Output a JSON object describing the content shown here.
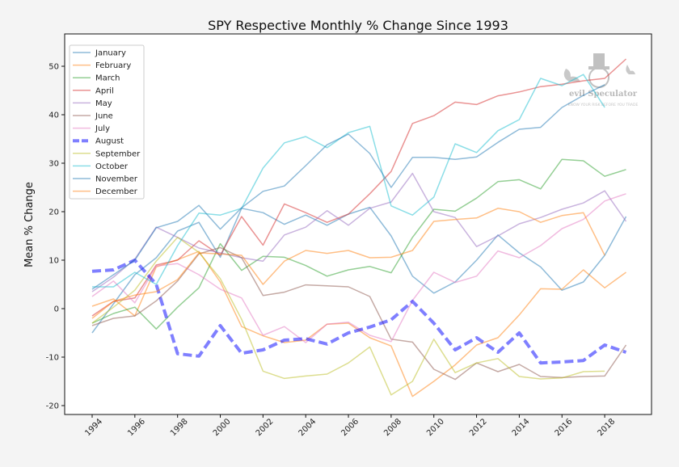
{
  "chart_data": {
    "type": "line",
    "title": "SPY Respective Monthly % Change Since 1993",
    "xlabel": "",
    "ylabel": "Mean % Change",
    "xlim": [
      1993,
      2020
    ],
    "ylim": [
      -22,
      55
    ],
    "xticks": [
      1994,
      1996,
      1998,
      2000,
      2002,
      2004,
      2006,
      2008,
      2010,
      2012,
      2014,
      2016,
      2018
    ],
    "yticks": [
      -20,
      -10,
      0,
      10,
      20,
      30,
      40,
      50
    ],
    "legend": "top-left",
    "grid": false,
    "x": [
      1994,
      1995,
      1996,
      1997,
      1998,
      1999,
      2000,
      2001,
      2002,
      2003,
      2004,
      2005,
      2006,
      2007,
      2008,
      2009,
      2010,
      2011,
      2012,
      2013,
      2014,
      2015,
      2016,
      2017,
      2018,
      2019
    ],
    "series": [
      {
        "name": "January",
        "color": "#1f77b4",
        "dashed": false,
        "values": [
          -5,
          1,
          7,
          10.5,
          16,
          17.8,
          10.6,
          20.7,
          19.8,
          17.4,
          19.3,
          17.2,
          19.5,
          20.9,
          15,
          6.7,
          3.2,
          5.5,
          10,
          15.2,
          11.5,
          8.6,
          3.8,
          5.5,
          11,
          19
        ]
      },
      {
        "name": "February",
        "color": "#ff7f0e",
        "dashed": false,
        "values": [
          0.5,
          2,
          -1.5,
          8.6,
          10.1,
          11.8,
          5.5,
          -3.7,
          -5.6,
          -7,
          -6.5,
          -3.2,
          -3,
          -6,
          -7.7,
          -18.1,
          -15,
          -11.6,
          -7.5,
          -6,
          -1.3,
          4.1,
          4,
          8,
          4.3,
          7.5
        ]
      },
      {
        "name": "March",
        "color": "#2ca02c",
        "dashed": false,
        "values": [
          -3,
          -1,
          0.3,
          -4.2,
          0.3,
          4.3,
          13.4,
          7.9,
          10.8,
          10.6,
          8.9,
          6.7,
          8,
          8.7,
          7.4,
          14.7,
          20.5,
          20.1,
          22.8,
          26.2,
          26.6,
          24.7,
          30.8,
          30.5,
          27.3,
          28.7
        ]
      },
      {
        "name": "April",
        "color": "#d62728",
        "dashed": false,
        "values": [
          -1.5,
          1.5,
          2.2,
          9,
          10,
          14,
          11,
          19,
          13.1,
          21.6,
          19.8,
          17.8,
          19.5,
          23.7,
          28.3,
          38.2,
          39.8,
          42.6,
          42.1,
          43.9,
          44.7,
          45.8,
          46.3,
          47,
          47.5,
          51.5
        ]
      },
      {
        "name": "May",
        "color": "#9467bd",
        "dashed": false,
        "values": [
          3.5,
          6.5,
          10.2,
          16.8,
          14.7,
          12.5,
          11.5,
          10.5,
          9.8,
          15.2,
          16.8,
          20.2,
          17.2,
          20.7,
          22,
          27.9,
          20,
          18.8,
          12.8,
          15,
          17.5,
          18.8,
          20.5,
          21.8,
          24.3,
          18
        ]
      },
      {
        "name": "June",
        "color": "#8c564b",
        "dashed": false,
        "values": [
          -3.5,
          -2,
          -1.5,
          1.6,
          5.7,
          11.3,
          12.6,
          10.5,
          2.7,
          3.4,
          4.9,
          4.7,
          4.5,
          2.5,
          -6.3,
          -6.9,
          -12.5,
          -14.6,
          -11.2,
          -13,
          -11.5,
          -14,
          -14.2,
          -14,
          -13.9,
          -7.5
        ]
      },
      {
        "name": "July",
        "color": "#e377c2",
        "dashed": false,
        "values": [
          2.5,
          5.7,
          1.2,
          8.8,
          9.3,
          7,
          4,
          2.2,
          -5.5,
          -3.7,
          -7,
          -3.2,
          -2.8,
          -5.5,
          -6.8,
          1.7,
          7.5,
          5.4,
          6.7,
          11.9,
          10.5,
          13,
          16.5,
          18.4,
          22.2,
          23.7
        ]
      },
      {
        "name": "August",
        "color": "#0000ff",
        "dashed": true,
        "values": [
          7.7,
          8,
          10,
          5,
          -9.3,
          -9.8,
          -3.5,
          -9.2,
          -8.5,
          -6.5,
          -6.2,
          -7.3,
          -5,
          -3.8,
          -2.3,
          1.5,
          -3,
          -8.5,
          -6,
          -9,
          -5,
          -11.2,
          -11,
          -10.7,
          -7.5,
          -9
        ]
      },
      {
        "name": "September",
        "color": "#bcbd22",
        "dashed": false,
        "values": [
          -3,
          0.3,
          3.8,
          9.8,
          14.7,
          11.6,
          6.2,
          -2.2,
          -12.9,
          -14.4,
          -13.9,
          -13.5,
          -11.2,
          -7.9,
          -17.8,
          -15,
          -6.3,
          -13.2,
          -11.2,
          -10.3,
          -14,
          -14.5,
          -14.3,
          -13,
          -12.9,
          null
        ]
      },
      {
        "name": "October",
        "color": "#17becf",
        "dashed": false,
        "values": [
          4.5,
          4.5,
          7.5,
          5,
          13,
          19.7,
          19.3,
          20.7,
          29,
          34.2,
          35.5,
          33.2,
          36.3,
          37.6,
          21.2,
          19.3,
          23,
          34,
          32.2,
          36.7,
          39,
          47.5,
          46,
          48.3,
          41.5,
          null
        ]
      },
      {
        "name": "November",
        "color": "#1f77b4",
        "dashed": false,
        "values": [
          4,
          7,
          10,
          16.7,
          18,
          21.3,
          16.4,
          20.8,
          24.2,
          25.3,
          29.5,
          33.8,
          36,
          32,
          25,
          31.2,
          31.2,
          30.8,
          31.3,
          34.3,
          37,
          37.4,
          41.5,
          44,
          46.2,
          null
        ]
      },
      {
        "name": "December",
        "color": "#ff7f0e",
        "dashed": false,
        "values": [
          -2,
          1.5,
          2.8,
          3.5,
          6,
          11.5,
          11.3,
          11,
          5,
          9.8,
          12,
          11.4,
          12,
          10.5,
          10.6,
          12,
          18,
          18.4,
          18.7,
          20.7,
          20,
          17.8,
          19.2,
          19.8,
          11,
          null
        ]
      }
    ]
  },
  "watermark": {
    "brand": "evil Speculator",
    "tagline": "KNOW YOUR RISK BEFORE YOU TRADE"
  }
}
